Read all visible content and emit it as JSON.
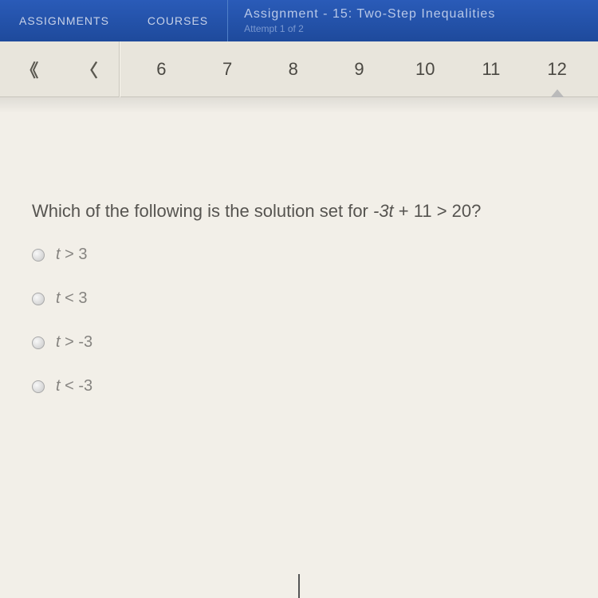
{
  "header": {
    "nav": {
      "assignments": "ASSIGNMENTS",
      "courses": "COURSES"
    },
    "assignment_title": "Assignment - 15: Two-Step Inequalities",
    "attempt_text": "Attempt 1 of 2"
  },
  "pagination": {
    "items": [
      {
        "label": "6",
        "active": false
      },
      {
        "label": "7",
        "active": false
      },
      {
        "label": "8",
        "active": false
      },
      {
        "label": "9",
        "active": false
      },
      {
        "label": "10",
        "active": false
      },
      {
        "label": "11",
        "active": false
      },
      {
        "label": "12",
        "active": true
      }
    ]
  },
  "question": {
    "prompt_prefix": "Which of the following is the solution set for ",
    "prompt_expr_var": "-3t",
    "prompt_expr_rest": " + 11 > 20?",
    "options": [
      {
        "var": "t",
        "rest": " > 3"
      },
      {
        "var": "t",
        "rest": " < 3"
      },
      {
        "var": "t",
        "rest": " > -3"
      },
      {
        "var": "t",
        "rest": " < -3"
      }
    ]
  },
  "colors": {
    "header_bg": "#1e4a9c",
    "page_bg": "#f2efe8",
    "text_main": "#565450",
    "text_option": "#868480"
  }
}
